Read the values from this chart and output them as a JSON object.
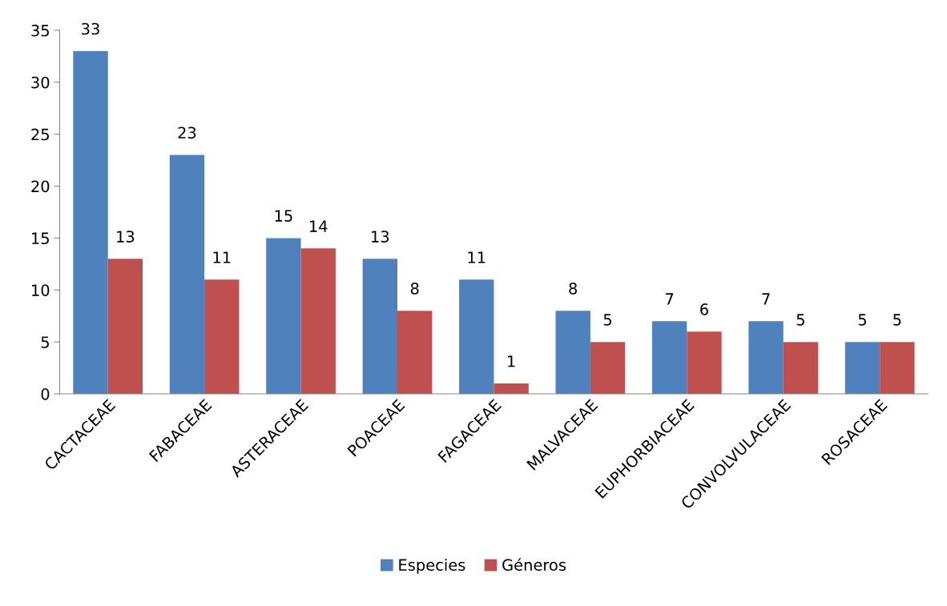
{
  "chart_data": {
    "type": "bar",
    "categories": [
      "CACTACEAE",
      "FABACEAE",
      "ASTERACEAE",
      "POACEAE",
      "FAGACEAE",
      "MALVACEAE",
      "EUPHORBIACEAE",
      "CONVOLVULACEAE",
      "ROSACEAE"
    ],
    "series": [
      {
        "name": "Especies",
        "color": "#4f81bd",
        "values": [
          33,
          23,
          15,
          13,
          11,
          8,
          7,
          7,
          5
        ]
      },
      {
        "name": "Géneros",
        "color": "#c0504d",
        "values": [
          13,
          11,
          14,
          8,
          1,
          5,
          6,
          5,
          5
        ]
      }
    ],
    "ylim": [
      0,
      35
    ],
    "yticks": [
      0,
      5,
      10,
      15,
      20,
      25,
      30,
      35
    ],
    "data_labels": true,
    "grid": false,
    "legend": "bottom"
  }
}
